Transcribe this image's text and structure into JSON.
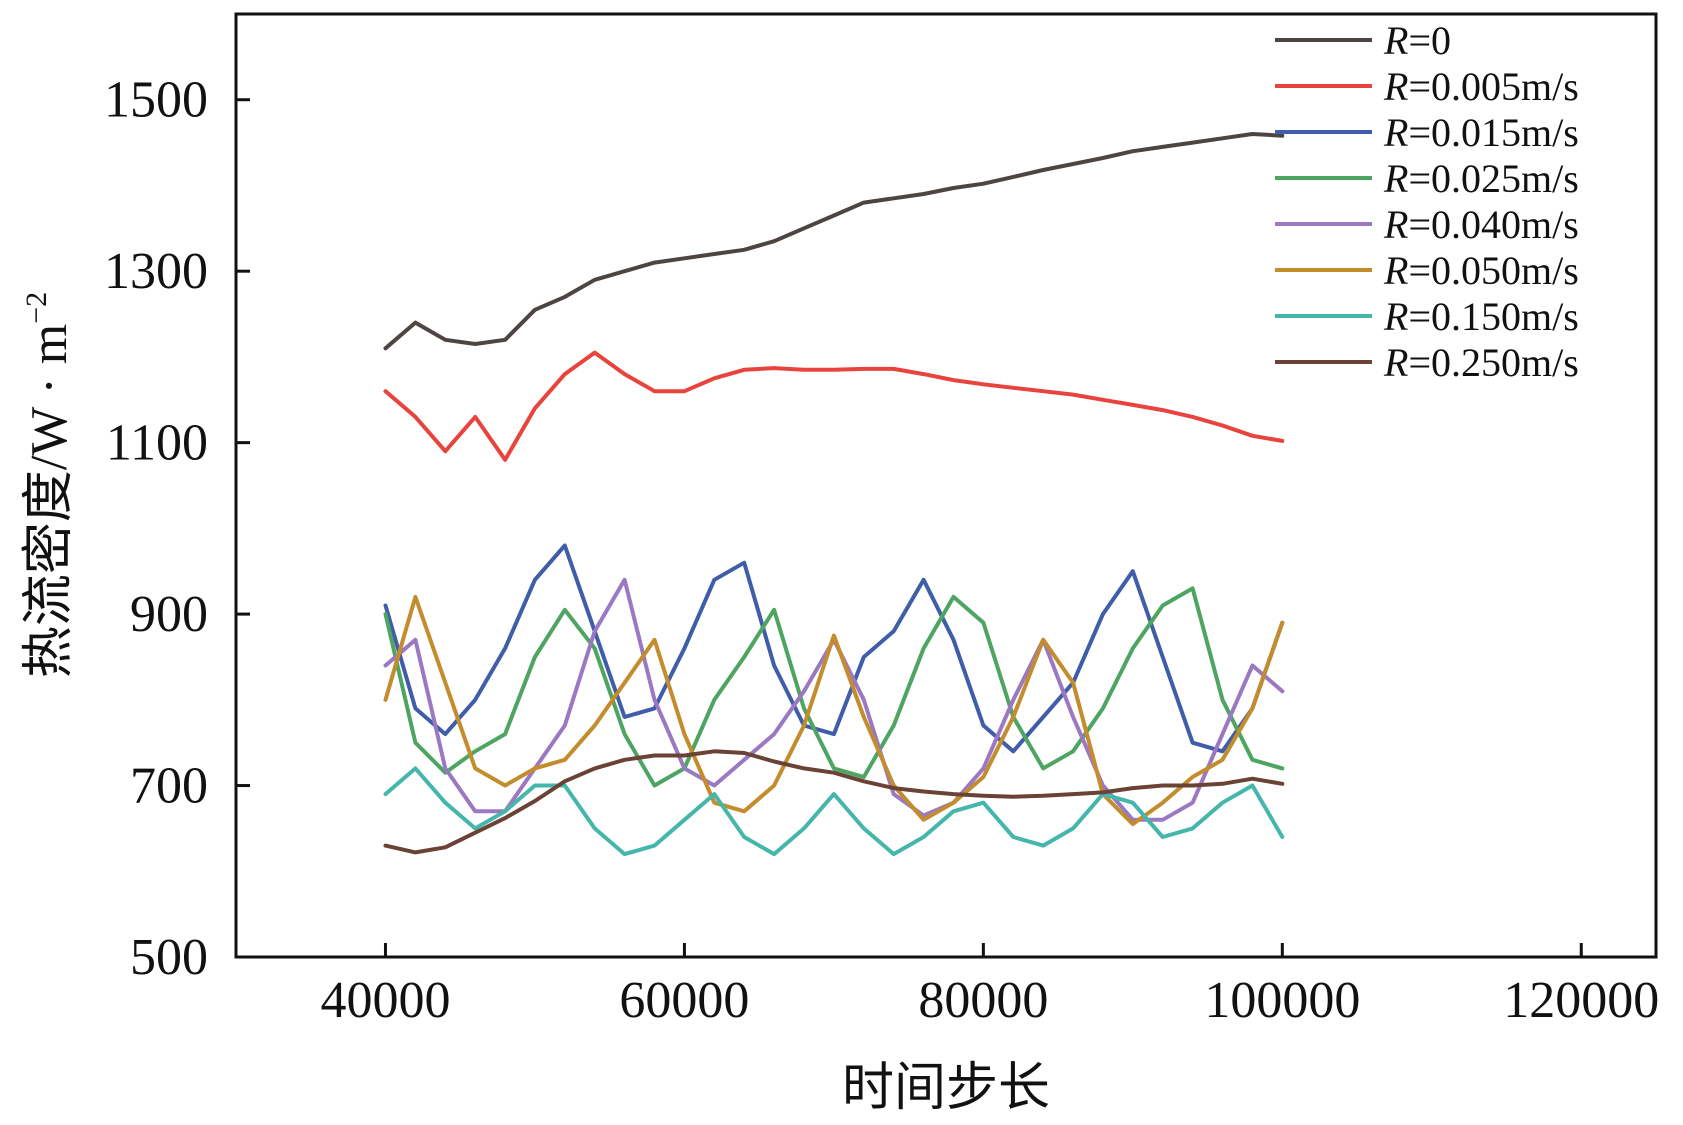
{
  "chart_data": {
    "type": "line",
    "title": "",
    "xlabel": "时间步长",
    "ylabel": "热流密度/W · m",
    "ylabel_sup": "−2",
    "xlim": [
      30000,
      125000
    ],
    "ylim": [
      500,
      1600
    ],
    "xticks": [
      40000,
      60000,
      80000,
      100000,
      120000
    ],
    "yticks": [
      500,
      700,
      900,
      1100,
      1300,
      1500
    ],
    "x_tick_labels": [
      "40000",
      "60000",
      "80000",
      "100000",
      "120000"
    ],
    "y_tick_labels": [
      "500",
      "700",
      "900",
      "1100",
      "1300",
      "1500"
    ],
    "grid": false,
    "legend_position": "top-right",
    "x": [
      40000,
      42000,
      44000,
      46000,
      48000,
      50000,
      52000,
      54000,
      56000,
      58000,
      60000,
      62000,
      64000,
      66000,
      68000,
      70000,
      72000,
      74000,
      76000,
      78000,
      80000,
      82000,
      84000,
      86000,
      88000,
      90000,
      92000,
      94000,
      96000,
      98000,
      100000
    ],
    "series": [
      {
        "name": "R=0",
        "legend_var": "R",
        "legend_rest": "=0",
        "color": "#4d4542",
        "values": [
          1210,
          1240,
          1220,
          1215,
          1220,
          1255,
          1270,
          1290,
          1300,
          1310,
          1315,
          1320,
          1325,
          1335,
          1350,
          1365,
          1380,
          1385,
          1390,
          1397,
          1402,
          1410,
          1418,
          1425,
          1432,
          1440,
          1445,
          1450,
          1455,
          1460,
          1458
        ]
      },
      {
        "name": "R=0.005m/s",
        "legend_var": "R",
        "legend_rest": "=0.005m/s",
        "color": "#e8443d",
        "values": [
          1160,
          1130,
          1090,
          1130,
          1080,
          1140,
          1180,
          1205,
          1180,
          1160,
          1160,
          1175,
          1185,
          1187,
          1185,
          1185,
          1186,
          1186,
          1180,
          1173,
          1168,
          1164,
          1160,
          1156,
          1150,
          1144,
          1138,
          1130,
          1120,
          1108,
          1102
        ]
      },
      {
        "name": "R=0.015m/s",
        "legend_var": "R",
        "legend_rest": "=0.015m/s",
        "color": "#3f5da8",
        "values": [
          910,
          790,
          760,
          800,
          860,
          940,
          980,
          880,
          780,
          790,
          860,
          940,
          960,
          840,
          770,
          760,
          850,
          880,
          940,
          870,
          770,
          740,
          780,
          820,
          900,
          950,
          850,
          750,
          740,
          790,
          890
        ]
      },
      {
        "name": "R=0.025m/s",
        "legend_var": "R",
        "legend_rest": "=0.025m/s",
        "color": "#4ea461",
        "values": [
          900,
          750,
          715,
          740,
          760,
          850,
          905,
          860,
          760,
          700,
          720,
          800,
          850,
          905,
          790,
          720,
          710,
          770,
          860,
          920,
          890,
          780,
          720,
          740,
          790,
          860,
          910,
          930,
          800,
          730,
          720
        ]
      },
      {
        "name": "R=0.040m/s",
        "legend_var": "R",
        "legend_rest": "=0.040m/s",
        "color": "#9b78c2",
        "values": [
          840,
          870,
          720,
          670,
          670,
          720,
          770,
          880,
          940,
          800,
          720,
          700,
          730,
          760,
          810,
          870,
          800,
          690,
          665,
          680,
          720,
          800,
          870,
          780,
          700,
          660,
          660,
          680,
          760,
          840,
          810
        ]
      },
      {
        "name": "R=0.050m/s",
        "legend_var": "R",
        "legend_rest": "=0.050m/s",
        "color": "#c38c2c",
        "values": [
          800,
          920,
          820,
          720,
          700,
          720,
          730,
          770,
          820,
          870,
          760,
          680,
          670,
          700,
          770,
          875,
          780,
          700,
          660,
          680,
          710,
          780,
          870,
          820,
          690,
          655,
          680,
          710,
          730,
          790,
          890
        ]
      },
      {
        "name": "R=0.150m/s",
        "legend_var": "R",
        "legend_rest": "=0.150m/s",
        "color": "#45b6ac",
        "values": [
          690,
          720,
          680,
          650,
          670,
          700,
          700,
          650,
          620,
          630,
          660,
          690,
          640,
          620,
          650,
          690,
          650,
          620,
          640,
          670,
          680,
          640,
          630,
          650,
          690,
          680,
          640,
          650,
          680,
          700,
          640
        ]
      },
      {
        "name": "R=0.250m/s",
        "legend_var": "R",
        "legend_rest": "=0.250m/s",
        "color": "#6b4236",
        "values": [
          630,
          622,
          628,
          645,
          662,
          682,
          705,
          720,
          730,
          735,
          735,
          740,
          738,
          728,
          720,
          715,
          705,
          697,
          693,
          690,
          688,
          687,
          688,
          690,
          692,
          697,
          700,
          700,
          702,
          708,
          702
        ]
      }
    ]
  }
}
